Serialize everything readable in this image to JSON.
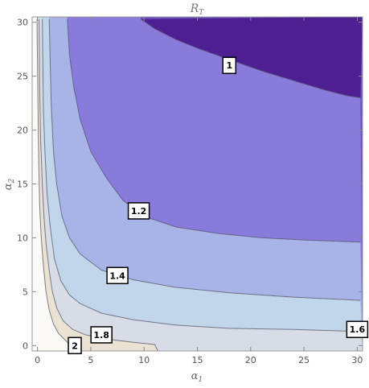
{
  "chart_data": {
    "type": "contour",
    "title": "R_T",
    "title_main": "R",
    "title_sub": "T",
    "xlabel": "α1",
    "xlabel_main": "α",
    "xlabel_sub": "1",
    "ylabel": "α2",
    "ylabel_main": "α",
    "ylabel_sub": "2",
    "xlim": [
      -0.5,
      30.5
    ],
    "ylim": [
      -0.5,
      30.5
    ],
    "x_ticks": [
      0,
      5,
      10,
      15,
      20,
      25,
      30
    ],
    "y_ticks": [
      0,
      5,
      10,
      15,
      20,
      25,
      30
    ],
    "x_tick_labels": [
      "0",
      "5",
      "10",
      "15",
      "20",
      "25",
      "30"
    ],
    "y_tick_labels": [
      "0",
      "5",
      "10",
      "15",
      "20",
      "25",
      "30"
    ],
    "grid": false,
    "levels": [
      {
        "value": 1.0,
        "label": "1",
        "label_x": 18,
        "label_y": 26,
        "contour_xy": [
          [
            9.7,
            30.3
          ],
          [
            11,
            29.4
          ],
          [
            13,
            28.4
          ],
          [
            15,
            27.6
          ],
          [
            17,
            26.9
          ],
          [
            19,
            26.2
          ],
          [
            21,
            25.5
          ],
          [
            23,
            24.9
          ],
          [
            25,
            24.3
          ],
          [
            27,
            23.7
          ],
          [
            29,
            23.2
          ],
          [
            30.3,
            23.0
          ]
        ]
      },
      {
        "value": 1.2,
        "label": "1.2",
        "label_x": 9.5,
        "label_y": 12.5,
        "contour_xy": [
          [
            2.8,
            30.3
          ],
          [
            3,
            27
          ],
          [
            3.4,
            24
          ],
          [
            4,
            21
          ],
          [
            5,
            18
          ],
          [
            6.5,
            15.5
          ],
          [
            8,
            13.5
          ],
          [
            10,
            12
          ],
          [
            13,
            11
          ],
          [
            17,
            10.4
          ],
          [
            21,
            10
          ],
          [
            25,
            9.8
          ],
          [
            30.3,
            9.6
          ]
        ]
      },
      {
        "value": 1.4,
        "label": "1.4",
        "label_x": 7.5,
        "label_y": 6.5,
        "contour_xy": [
          [
            1.1,
            30.3
          ],
          [
            1.2,
            26
          ],
          [
            1.3,
            22
          ],
          [
            1.5,
            18
          ],
          [
            1.8,
            15
          ],
          [
            2.3,
            12
          ],
          [
            3,
            10
          ],
          [
            4,
            8.5
          ],
          [
            6,
            7
          ],
          [
            9,
            6.1
          ],
          [
            13,
            5.4
          ],
          [
            18,
            4.9
          ],
          [
            24,
            4.5
          ],
          [
            30.3,
            4.2
          ]
        ]
      },
      {
        "value": 1.6,
        "label": "1.6",
        "label_x": 30.0,
        "label_y": 1.5,
        "contour_xy": [
          [
            0.45,
            30.3
          ],
          [
            0.5,
            26
          ],
          [
            0.55,
            22
          ],
          [
            0.7,
            18
          ],
          [
            0.9,
            14
          ],
          [
            1.2,
            11
          ],
          [
            1.6,
            8
          ],
          [
            2.2,
            6
          ],
          [
            3,
            4.7
          ],
          [
            4,
            3.9
          ],
          [
            6,
            3
          ],
          [
            9,
            2.4
          ],
          [
            13,
            1.9
          ],
          [
            18,
            1.6
          ],
          [
            24,
            1.5
          ],
          [
            30.3,
            1.3
          ]
        ]
      },
      {
        "value": 1.8,
        "label": "1.8",
        "label_x": 6.0,
        "label_y": 1.0,
        "contour_xy": [
          [
            0.15,
            30.3
          ],
          [
            0.2,
            24
          ],
          [
            0.3,
            19
          ],
          [
            0.45,
            15
          ],
          [
            0.6,
            12
          ],
          [
            0.8,
            9.5
          ],
          [
            1.1,
            7
          ],
          [
            1.4,
            5
          ],
          [
            1.8,
            3.5
          ],
          [
            2.4,
            2.3
          ],
          [
            3.3,
            1.5
          ],
          [
            4.5,
            1
          ],
          [
            6.5,
            0.6
          ],
          [
            9,
            0.3
          ],
          [
            11,
            0.1
          ],
          [
            11.3,
            -0.5
          ]
        ]
      },
      {
        "value": 2.0,
        "label": "2",
        "label_x": 3.5,
        "label_y": 0.0,
        "contour_xy": [
          [
            -0.05,
            30.3
          ],
          [
            0.05,
            22
          ],
          [
            0.12,
            17
          ],
          [
            0.2,
            13
          ],
          [
            0.35,
            10
          ],
          [
            0.55,
            7.5
          ],
          [
            0.8,
            5
          ],
          [
            1.1,
            3.3
          ],
          [
            1.5,
            2
          ],
          [
            2,
            1.1
          ],
          [
            2.8,
            0.3
          ],
          [
            3.5,
            -0.5
          ]
        ]
      }
    ],
    "fill_colors": [
      "#fbfaf7",
      "#eae2d2",
      "#d8dce6",
      "#c1d6ea",
      "#a8b4e8",
      "#887bdc",
      "#6b4fc2",
      "#4d1f93"
    ],
    "line_color": "#555566",
    "label_box_color": "#ffffff"
  }
}
